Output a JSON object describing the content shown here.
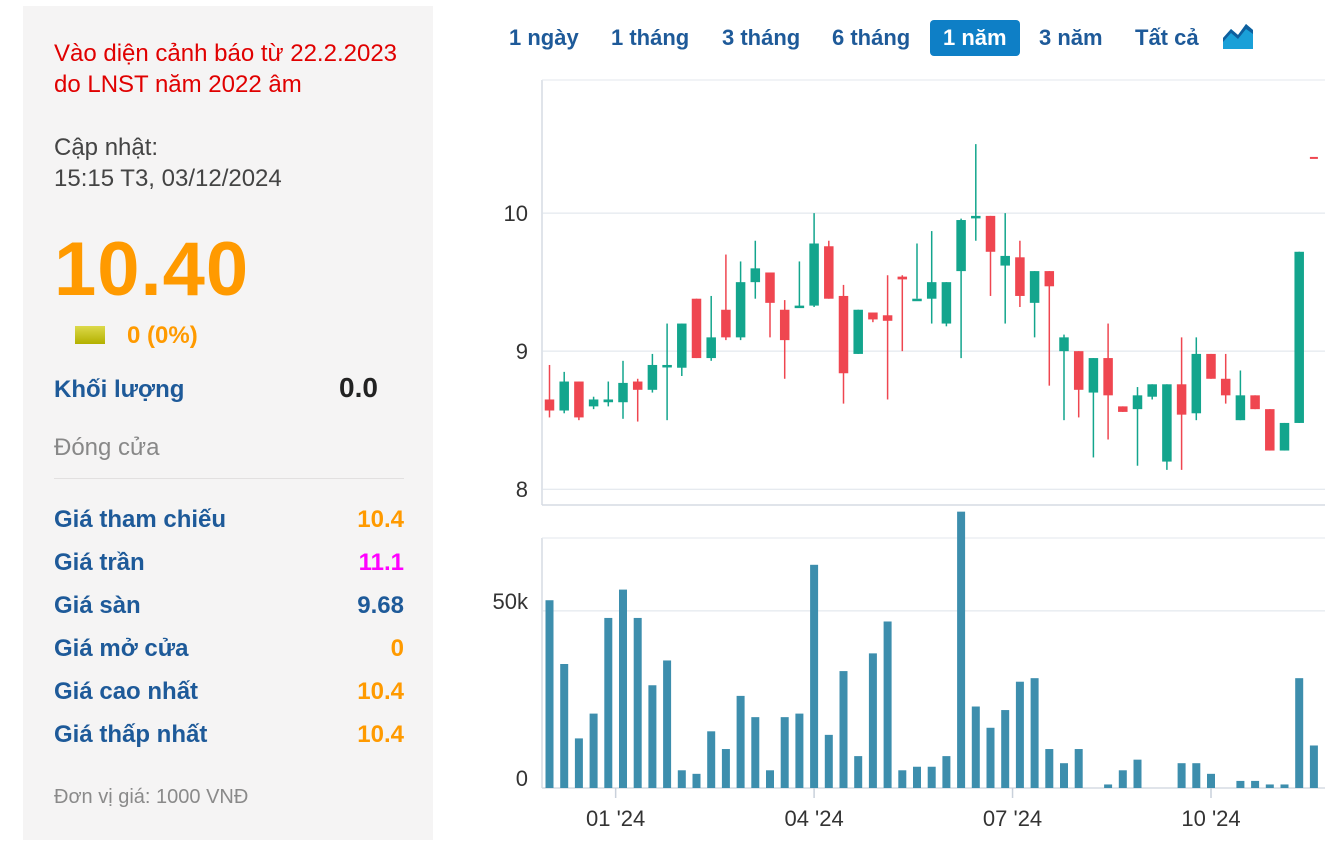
{
  "info": {
    "warning": "Vào diện cảnh báo từ 22.2.2023 do LNST năm 2022 âm",
    "updated_label": "Cập nhật:",
    "updated_time": "15:15 T3, 03/12/2024",
    "price": "10.40",
    "change": "0 (0%)",
    "volume_label": "Khối lượng",
    "volume_value": "0.0",
    "status": "Đóng cửa",
    "unit_note": "Đơn vị giá: 1000 VNĐ",
    "stats": [
      {
        "label": "Giá tham chiếu",
        "value": "10.4",
        "color": "#ff9a00"
      },
      {
        "label": "Giá trần",
        "value": "11.1",
        "color": "#ff00ff"
      },
      {
        "label": "Giá sàn",
        "value": "9.68",
        "color": "#1e5a99"
      },
      {
        "label": "Giá mở cửa",
        "value": "0",
        "color": "#ff9a00"
      },
      {
        "label": "Giá cao nhất",
        "value": "10.4",
        "color": "#ff9a00"
      },
      {
        "label": "Giá thấp nhất",
        "value": "10.4",
        "color": "#ff9a00"
      }
    ]
  },
  "tabs": [
    "1 ngày",
    "1 tháng",
    "3 tháng",
    "6 tháng",
    "1 năm",
    "3 năm",
    "Tất cả"
  ],
  "active_tab": "1 năm",
  "colors": {
    "up": "#13a58d",
    "down": "#ef4650",
    "volume": "#3d8ead",
    "price": "#ff9a00",
    "link": "#1e5a99",
    "active_tab": "#0e7fc6"
  },
  "chart_data": {
    "type": "candlestick",
    "price_axis": {
      "min": 7.9,
      "max": 10.95,
      "ticks": [
        8,
        9,
        10
      ]
    },
    "volume_axis": {
      "min": 0,
      "max": 70000,
      "ticks": [
        {
          "v": 0,
          "label": "0"
        },
        {
          "v": 50000,
          "label": "50k"
        }
      ]
    },
    "x_ticks": [
      {
        "i": 4.5,
        "label": "01 '24"
      },
      {
        "i": 18,
        "label": "04 '24"
      },
      {
        "i": 31.5,
        "label": "07 '24"
      },
      {
        "i": 45,
        "label": "10 '24"
      }
    ],
    "last_marker": 10.4,
    "candles": [
      {
        "o": 8.65,
        "h": 8.9,
        "l": 8.52,
        "c": 8.57,
        "v": 53000
      },
      {
        "o": 8.57,
        "h": 8.85,
        "l": 8.55,
        "c": 8.78,
        "v": 35000
      },
      {
        "o": 8.78,
        "h": 8.78,
        "l": 8.5,
        "c": 8.52,
        "v": 14000
      },
      {
        "o": 8.6,
        "h": 8.67,
        "l": 8.58,
        "c": 8.65,
        "v": 21000
      },
      {
        "o": 8.63,
        "h": 8.78,
        "l": 8.6,
        "c": 8.65,
        "v": 48000
      },
      {
        "o": 8.63,
        "h": 8.93,
        "l": 8.51,
        "c": 8.77,
        "v": 56000
      },
      {
        "o": 8.78,
        "h": 8.8,
        "l": 8.49,
        "c": 8.72,
        "v": 48000
      },
      {
        "o": 8.72,
        "h": 8.98,
        "l": 8.7,
        "c": 8.9,
        "v": 29000
      },
      {
        "o": 8.9,
        "h": 9.2,
        "l": 8.5,
        "c": 8.9,
        "v": 36000
      },
      {
        "o": 8.88,
        "h": 9.2,
        "l": 8.82,
        "c": 9.2,
        "v": 5000
      },
      {
        "o": 9.38,
        "h": 9.38,
        "l": 8.95,
        "c": 8.95,
        "v": 4000
      },
      {
        "o": 8.95,
        "h": 9.4,
        "l": 8.93,
        "c": 9.1,
        "v": 16000
      },
      {
        "o": 9.3,
        "h": 9.7,
        "l": 9.08,
        "c": 9.1,
        "v": 11000
      },
      {
        "o": 9.1,
        "h": 9.65,
        "l": 9.08,
        "c": 9.5,
        "v": 26000
      },
      {
        "o": 9.5,
        "h": 9.8,
        "l": 9.38,
        "c": 9.6,
        "v": 20000
      },
      {
        "o": 9.57,
        "h": 9.57,
        "l": 9.1,
        "c": 9.35,
        "v": 5000
      },
      {
        "o": 9.3,
        "h": 9.37,
        "l": 8.8,
        "c": 9.08,
        "v": 20000
      },
      {
        "o": 9.33,
        "h": 9.65,
        "l": 9.32,
        "c": 9.33,
        "v": 21000
      },
      {
        "o": 9.33,
        "h": 10.0,
        "l": 9.32,
        "c": 9.78,
        "v": 63000
      },
      {
        "o": 9.76,
        "h": 9.8,
        "l": 9.38,
        "c": 9.38,
        "v": 15000
      },
      {
        "o": 9.4,
        "h": 9.48,
        "l": 8.62,
        "c": 8.84,
        "v": 33000
      },
      {
        "o": 8.98,
        "h": 9.3,
        "l": 8.98,
        "c": 9.3,
        "v": 9000
      },
      {
        "o": 9.28,
        "h": 9.28,
        "l": 9.21,
        "c": 9.23,
        "v": 38000
      },
      {
        "o": 9.26,
        "h": 9.55,
        "l": 8.65,
        "c": 9.22,
        "v": 47000
      },
      {
        "o": 9.54,
        "h": 9.55,
        "l": 9.0,
        "c": 9.52,
        "v": 5000
      },
      {
        "o": 9.38,
        "h": 9.78,
        "l": 9.38,
        "c": 9.38,
        "v": 6000
      },
      {
        "o": 9.38,
        "h": 9.87,
        "l": 9.2,
        "c": 9.5,
        "v": 6000
      },
      {
        "o": 9.2,
        "h": 9.5,
        "l": 9.18,
        "c": 9.5,
        "v": 9000
      },
      {
        "o": 9.58,
        "h": 9.96,
        "l": 8.95,
        "c": 9.95,
        "v": 78000
      },
      {
        "o": 9.98,
        "h": 10.5,
        "l": 9.8,
        "c": 9.98,
        "v": 23000
      },
      {
        "o": 9.98,
        "h": 9.98,
        "l": 9.4,
        "c": 9.72,
        "v": 17000
      },
      {
        "o": 9.62,
        "h": 10.0,
        "l": 9.2,
        "c": 9.69,
        "v": 22000
      },
      {
        "o": 9.68,
        "h": 9.8,
        "l": 9.32,
        "c": 9.4,
        "v": 30000
      },
      {
        "o": 9.35,
        "h": 9.58,
        "l": 9.1,
        "c": 9.58,
        "v": 31000
      },
      {
        "o": 9.58,
        "h": 9.58,
        "l": 8.75,
        "c": 9.47,
        "v": 11000
      },
      {
        "o": 9.0,
        "h": 9.12,
        "l": 8.5,
        "c": 9.1,
        "v": 7000
      },
      {
        "o": 9.0,
        "h": 9.0,
        "l": 8.52,
        "c": 8.72,
        "v": 11000
      },
      {
        "o": 8.7,
        "h": 8.95,
        "l": 8.23,
        "c": 8.95,
        "v": 0
      },
      {
        "o": 8.95,
        "h": 9.2,
        "l": 8.36,
        "c": 8.68,
        "v": 1000
      },
      {
        "o": 8.6,
        "h": 8.6,
        "l": 8.56,
        "c": 8.56,
        "v": 5000
      },
      {
        "o": 8.58,
        "h": 8.74,
        "l": 8.17,
        "c": 8.68,
        "v": 8000
      },
      {
        "o": 8.67,
        "h": 8.76,
        "l": 8.65,
        "c": 8.76,
        "v": 0
      },
      {
        "o": 8.2,
        "h": 8.76,
        "l": 8.14,
        "c": 8.76,
        "v": 0
      },
      {
        "o": 8.76,
        "h": 9.1,
        "l": 8.14,
        "c": 8.54,
        "v": 7000
      },
      {
        "o": 8.55,
        "h": 9.1,
        "l": 8.5,
        "c": 8.98,
        "v": 7000
      },
      {
        "o": 8.98,
        "h": 8.98,
        "l": 8.8,
        "c": 8.8,
        "v": 4000
      },
      {
        "o": 8.8,
        "h": 8.98,
        "l": 8.62,
        "c": 8.68,
        "v": 0
      },
      {
        "o": 8.5,
        "h": 8.86,
        "l": 8.5,
        "c": 8.68,
        "v": 2000
      },
      {
        "o": 8.68,
        "h": 8.68,
        "l": 8.58,
        "c": 8.58,
        "v": 2000
      },
      {
        "o": 8.58,
        "h": 8.58,
        "l": 8.28,
        "c": 8.28,
        "v": 1000
      },
      {
        "o": 8.28,
        "h": 8.48,
        "l": 8.28,
        "c": 8.48,
        "v": 1000
      },
      {
        "o": 8.48,
        "h": 9.72,
        "l": 8.48,
        "c": 9.72,
        "v": 31000
      },
      {
        "o": 10.4,
        "h": 10.4,
        "l": 10.4,
        "c": 10.4,
        "v": 12000
      }
    ]
  }
}
